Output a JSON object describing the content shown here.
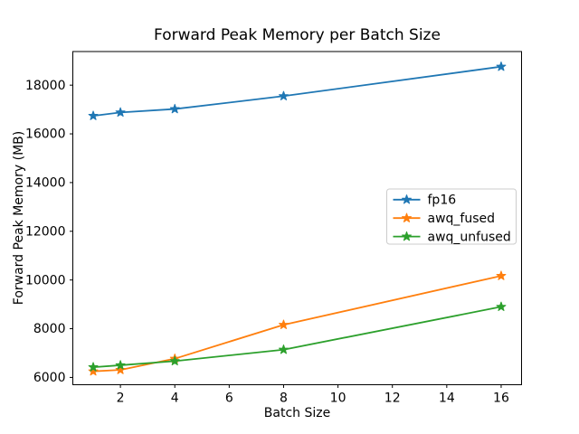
{
  "figure": {
    "title": "Forward Peak Memory per Batch Size",
    "xlabel": "Batch Size",
    "ylabel": "Forward Peak Memory (MB)"
  },
  "chart_data": {
    "type": "line",
    "title": "Forward Peak Memory per Batch Size",
    "xlabel": "Batch Size",
    "ylabel": "Forward Peak Memory (MB)",
    "x": [
      1,
      2,
      4,
      8,
      16
    ],
    "series": [
      {
        "name": "fp16",
        "color": "#1f77b4",
        "marker": "star",
        "values": [
          16740,
          16880,
          17020,
          17550,
          18760
        ]
      },
      {
        "name": "awq_fused",
        "color": "#ff7f0e",
        "marker": "star",
        "values": [
          6250,
          6310,
          6770,
          8160,
          10170
        ]
      },
      {
        "name": "awq_unfused",
        "color": "#2ca02c",
        "marker": "star",
        "values": [
          6420,
          6500,
          6670,
          7140,
          8900
        ]
      }
    ],
    "xticks": [
      2,
      4,
      6,
      8,
      10,
      12,
      14,
      16
    ],
    "yticks": [
      6000,
      8000,
      10000,
      12000,
      14000,
      16000,
      18000
    ],
    "xlim": [
      0.25,
      16.75
    ],
    "ylim": [
      5700,
      19380
    ],
    "grid": false,
    "legend_position": "center right",
    "axis_color": "#000000",
    "background_color": "#ffffff",
    "legend_border_color": "#cccccc"
  }
}
